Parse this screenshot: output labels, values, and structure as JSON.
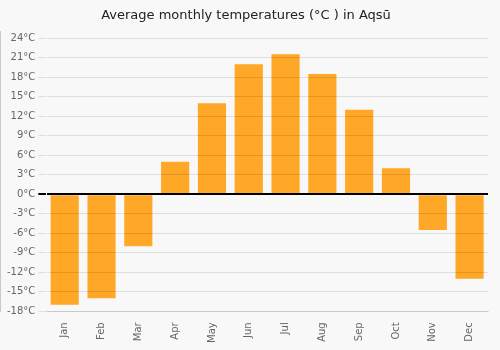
{
  "chart_data": {
    "type": "bar",
    "title": "Average monthly temperatures (°C ) in Aqsū",
    "categories": [
      "Jan",
      "Feb",
      "Mar",
      "Apr",
      "May",
      "Jun",
      "Jul",
      "Aug",
      "Sep",
      "Oct",
      "Nov",
      "Dec"
    ],
    "values": [
      -17,
      -16,
      -8,
      5,
      14,
      20,
      21.5,
      18.5,
      13,
      4,
      -5.5,
      -13
    ],
    "color": "#FFA726",
    "ylim": [
      -18,
      25
    ],
    "yticks": [
      {
        "value": -18,
        "label": "-18°C"
      },
      {
        "value": -15,
        "label": "-15°C"
      },
      {
        "value": -12,
        "label": "-12°C"
      },
      {
        "value": -9,
        "label": "-9°C"
      },
      {
        "value": -6,
        "label": "-6°C"
      },
      {
        "value": -3,
        "label": "-3°C"
      },
      {
        "value": 0,
        "label": "0°C"
      },
      {
        "value": 3,
        "label": "3°C"
      },
      {
        "value": 6,
        "label": "6°C"
      },
      {
        "value": 9,
        "label": "9°C"
      },
      {
        "value": 12,
        "label": "12°C"
      },
      {
        "value": 15,
        "label": "15°C"
      },
      {
        "value": 18,
        "label": "18°C"
      },
      {
        "value": 21,
        "label": "21°C"
      },
      {
        "value": 24,
        "label": "24°C"
      }
    ],
    "grid": true
  }
}
